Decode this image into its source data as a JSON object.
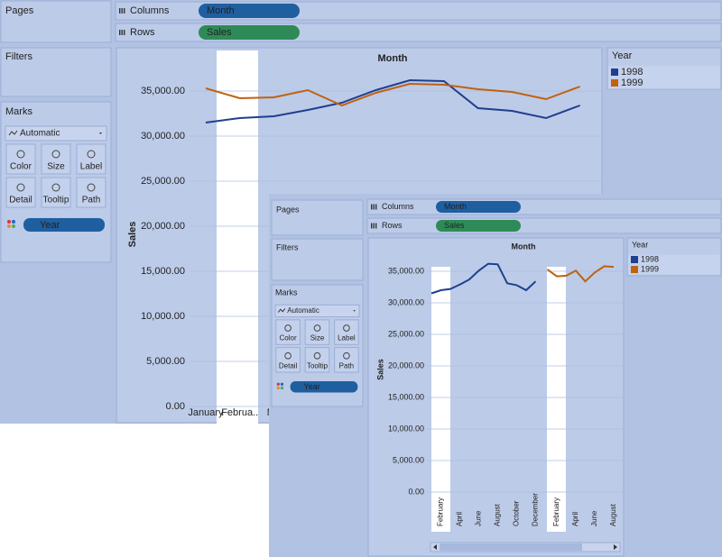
{
  "back": {
    "pages": "Pages",
    "columns_label": "Columns",
    "columns_pill": "Month",
    "rows_label": "Rows",
    "rows_pill": "Sales",
    "filters": "Filters",
    "marks": "Marks",
    "mark_type": "Automatic",
    "mark_buttons": [
      "Color",
      "Size",
      "Label",
      "Detail",
      "Tooltip",
      "Path"
    ],
    "mark_pill": "Year",
    "chart": {
      "type": "line",
      "title": "Month",
      "y_label": "Sales",
      "legend_title": "Year",
      "ylim": [
        0,
        39500
      ],
      "yticks": [
        {
          "value": 0,
          "label": "0.00"
        },
        {
          "value": 5000,
          "label": "5,000.00"
        },
        {
          "value": 10000,
          "label": "10,000.00"
        },
        {
          "value": 15000,
          "label": "15,000.00"
        },
        {
          "value": 20000,
          "label": "20,000.00"
        },
        {
          "value": 25000,
          "label": "25,000.00"
        },
        {
          "value": 30000,
          "label": "30,000.00"
        },
        {
          "value": 35000,
          "label": "35,000.00"
        }
      ],
      "panes": [
        {
          "categories": [
            "January",
            "Februa..",
            "Ma",
            null,
            null,
            null,
            null,
            null,
            null,
            null,
            null,
            null
          ]
        }
      ],
      "series": [
        {
          "name": "1998",
          "color": "#1f3f8f",
          "values": [
            31500,
            32000,
            32200,
            32900,
            33700,
            35100,
            36200,
            36100,
            33100,
            32800,
            32000,
            33400
          ]
        },
        {
          "name": "1999",
          "color": "#c0620f",
          "values": [
            35300,
            34200,
            34300,
            35100,
            33400,
            34800,
            35800,
            35700,
            35200,
            34900,
            34100,
            35500
          ]
        }
      ]
    }
  },
  "front": {
    "pages": "Pages",
    "columns_label": "Columns",
    "columns_pill": "Month",
    "rows_label": "Rows",
    "rows_pill": "Sales",
    "filters": "Filters",
    "marks": "Marks",
    "mark_type": "Automatic",
    "mark_buttons": [
      "Color",
      "Size",
      "Label",
      "Detail",
      "Tooltip",
      "Path"
    ],
    "mark_pill": "Year",
    "chart": {
      "type": "line",
      "title": "Month",
      "y_label": "Sales",
      "legend_title": "Year",
      "ylim": [
        0,
        37000
      ],
      "yticks": [
        {
          "value": 0,
          "label": "0.00"
        },
        {
          "value": 5000,
          "label": "5,000.00"
        },
        {
          "value": 10000,
          "label": "10,000.00"
        },
        {
          "value": 15000,
          "label": "15,000.00"
        },
        {
          "value": 20000,
          "label": "20,000.00"
        },
        {
          "value": 25000,
          "label": "25,000.00"
        },
        {
          "value": 30000,
          "label": "30,000.00"
        },
        {
          "value": 35000,
          "label": "35,000.00"
        }
      ],
      "panes": [
        {
          "categories": [
            null,
            "February",
            null,
            "April",
            null,
            "June",
            null,
            "August",
            null,
            "October",
            null,
            "December"
          ]
        },
        {
          "categories": [
            null,
            "February",
            null,
            "April",
            null,
            "June",
            null,
            "August"
          ]
        }
      ],
      "series": [
        {
          "name": "1998",
          "color": "#1f3f8f",
          "values": [
            31500,
            32000,
            32200,
            32900,
            33700,
            35100,
            36200,
            36100,
            33100,
            32800,
            32000,
            33400
          ]
        },
        {
          "name": "1999",
          "color": "#c0620f",
          "values": [
            35300,
            34200,
            34300,
            35100,
            33400,
            34800,
            35800,
            35700
          ]
        }
      ]
    }
  }
}
